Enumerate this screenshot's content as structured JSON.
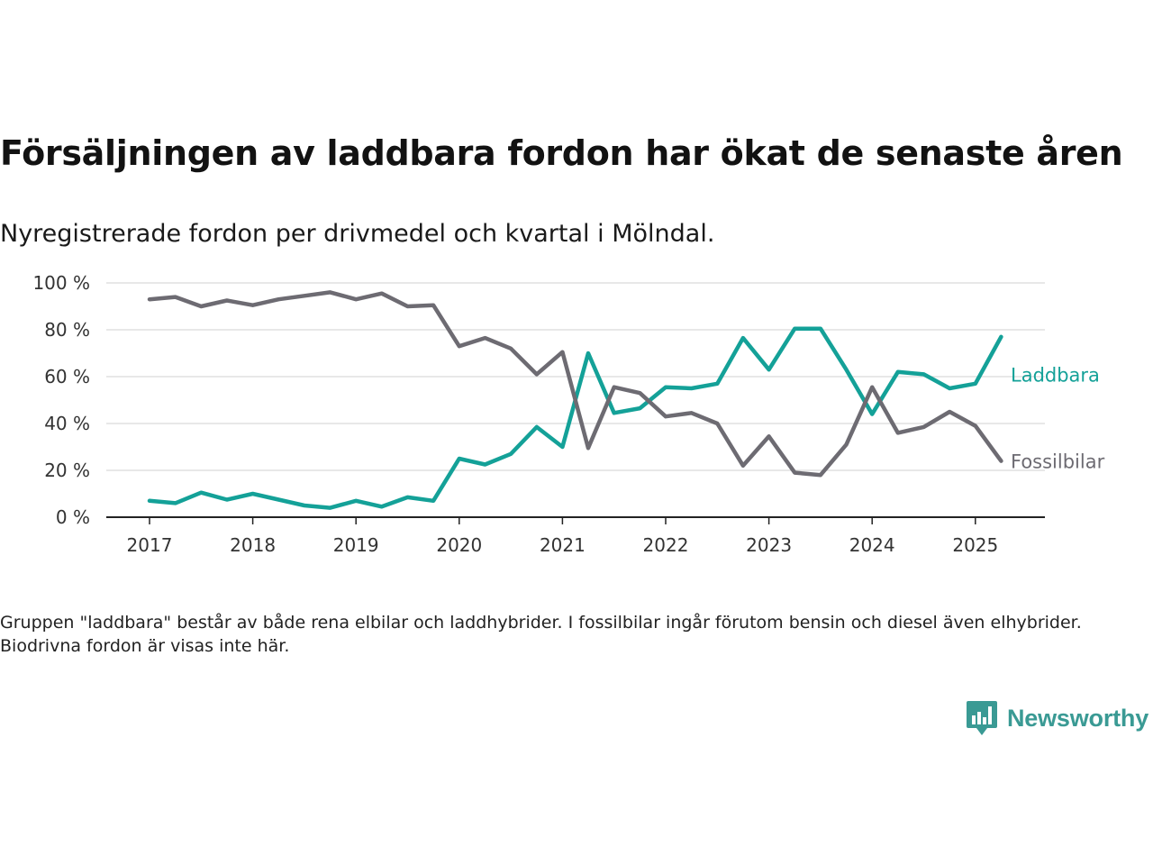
{
  "title": "Försäljningen av laddbara fordon har ökat de senaste åren",
  "subtitle": "Nyregistrerade fordon per drivmedel och kvartal i Mölndal.",
  "note": "Gruppen \"laddbara\" består av både rena elbilar och laddhybrider. I fossilbilar ingår förutom bensin och diesel även elhybrider. Biodrivna fordon är visas inte här.",
  "brand": {
    "name": "Newsworthy",
    "icon": "newsworthy-logo-icon",
    "color": "#3a9a94"
  },
  "chart_data": {
    "type": "line",
    "x_tick_labels": [
      "2017",
      "2018",
      "2019",
      "2020",
      "2021",
      "2022",
      "2023",
      "2024",
      "2025"
    ],
    "y_tick_labels": [
      "0 %",
      "20 %",
      "40 %",
      "60 %",
      "80 %",
      "100 %"
    ],
    "ylim": [
      0,
      100
    ],
    "grid": true,
    "x": [
      "2017 Q1",
      "2017 Q2",
      "2017 Q3",
      "2017 Q4",
      "2018 Q1",
      "2018 Q2",
      "2018 Q3",
      "2018 Q4",
      "2019 Q1",
      "2019 Q2",
      "2019 Q3",
      "2019 Q4",
      "2020 Q1",
      "2020 Q2",
      "2020 Q3",
      "2020 Q4",
      "2021 Q1",
      "2021 Q2",
      "2021 Q3",
      "2021 Q4",
      "2022 Q1",
      "2022 Q2",
      "2022 Q3",
      "2022 Q4",
      "2023 Q1",
      "2023 Q2",
      "2023 Q3",
      "2023 Q4",
      "2024 Q1",
      "2024 Q2",
      "2024 Q3",
      "2024 Q4",
      "2025 Q1",
      "2025 Q2"
    ],
    "series": [
      {
        "name": "Laddbara",
        "color": "#14a198",
        "values": [
          7,
          6,
          10.5,
          7.5,
          10,
          7.5,
          5,
          4,
          7,
          4.5,
          8.5,
          7,
          25,
          22.5,
          27,
          38.5,
          30,
          70,
          44.5,
          46.5,
          55.5,
          55,
          57,
          76.5,
          63,
          80.5,
          80.5,
          63,
          44,
          62,
          61,
          55,
          57,
          77
        ]
      },
      {
        "name": "Fossilbilar",
        "color": "#6d6b72",
        "values": [
          93,
          94,
          90,
          92.5,
          90.5,
          93,
          94.5,
          96,
          93,
          95.5,
          90,
          90.5,
          73,
          76.5,
          72,
          61,
          70.5,
          29.5,
          55.5,
          53,
          43,
          44.5,
          40,
          22,
          34.5,
          19,
          18,
          31,
          55.5,
          36,
          38.5,
          45,
          39,
          24
        ]
      }
    ]
  }
}
